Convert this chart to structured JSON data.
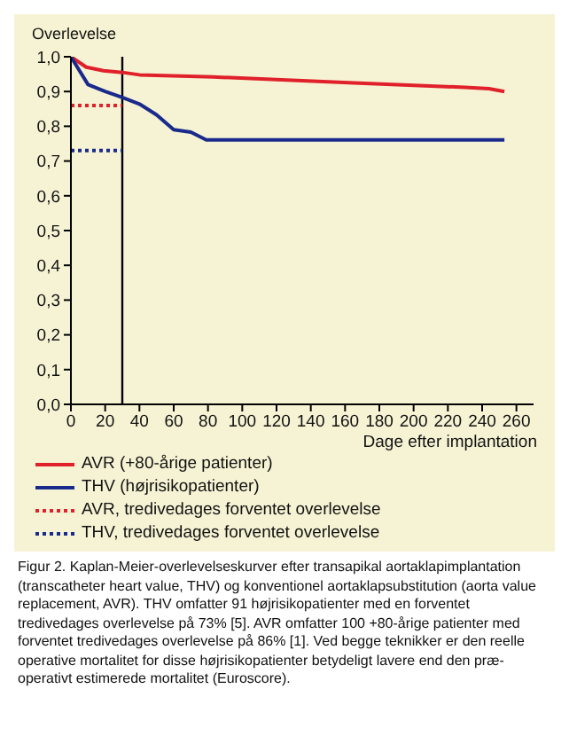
{
  "chart_data": {
    "type": "line",
    "ylabel": "Overlevelse",
    "xlabel": "Dage efter implantation",
    "series": [
      {
        "name": "AVR (+80-årige patienter)",
        "color": "#e0202a",
        "line_style": "solid",
        "x": [
          0,
          9,
          19,
          30,
          40,
          83,
          165,
          230,
          244,
          253
        ],
        "values": [
          1.0,
          0.97,
          0.96,
          0.955,
          0.948,
          0.942,
          0.925,
          0.912,
          0.908,
          0.9
        ]
      },
      {
        "name": "THV (højrisikopatienter)",
        "color": "#1a2a8c",
        "line_style": "solid",
        "x": [
          0,
          10,
          20,
          30,
          40,
          50,
          60,
          70,
          79,
          253
        ],
        "values": [
          1.0,
          0.92,
          0.9,
          0.883,
          0.864,
          0.833,
          0.79,
          0.783,
          0.761,
          0.761
        ]
      },
      {
        "name": "AVR, tredivedages forventet overlevelse",
        "color": "#e0202a",
        "line_style": "dotted",
        "x": [
          0,
          30
        ],
        "values": [
          0.86,
          0.86
        ]
      },
      {
        "name": "THV, tredivedages forventet overlevelse",
        "color": "#1a2a8c",
        "line_style": "dotted",
        "x": [
          0,
          30
        ],
        "values": [
          0.73,
          0.73
        ]
      }
    ],
    "xlim": [
      0,
      270
    ],
    "xticks": [
      0,
      20,
      40,
      60,
      80,
      100,
      120,
      140,
      160,
      180,
      200,
      220,
      240,
      260
    ],
    "ylim": [
      0,
      1.0
    ],
    "yticks": [
      {
        "value": 0,
        "label": "0,0"
      },
      {
        "value": 0.1,
        "label": "0,1"
      },
      {
        "value": 0.2,
        "label": "0,2"
      },
      {
        "value": 0.3,
        "label": "0,3"
      },
      {
        "value": 0.4,
        "label": "0,4"
      },
      {
        "value": 0.5,
        "label": "0,5"
      },
      {
        "value": 0.6,
        "label": "0,6"
      },
      {
        "value": 0.7,
        "label": "0,7"
      },
      {
        "value": 0.8,
        "label": "0,8"
      },
      {
        "value": 0.9,
        "label": "0,9"
      },
      {
        "value": 1.0,
        "label": "1,0"
      }
    ],
    "ref_lines": [
      {
        "axis": "x",
        "value": 30,
        "color": "#000000",
        "line_style": "solid"
      }
    ],
    "grid": false,
    "legend": "bottom",
    "marker": "none",
    "annotations": [
      "Figur 2. Kaplan-Meier-overlevelseskurver efter transapikal aortaklapimplantation (transcatheter heart value, THV) og konventionel aortaklapsubstitution (aorta value replacement, AVR). THV omfatter 91 højrisikopatienter med en forventet tredivedages overlevelse på 73% [5]. AVR omfatter 100 +80-årige patienter med forventet tredivedages overlevelse på 86% [1]. Ved begge teknikker er den reelle operative mortalitet for disse højrisikopatienter betydeligt lavere end den præ-operativt estimerede mortalitet (Euroscore)."
    ]
  }
}
